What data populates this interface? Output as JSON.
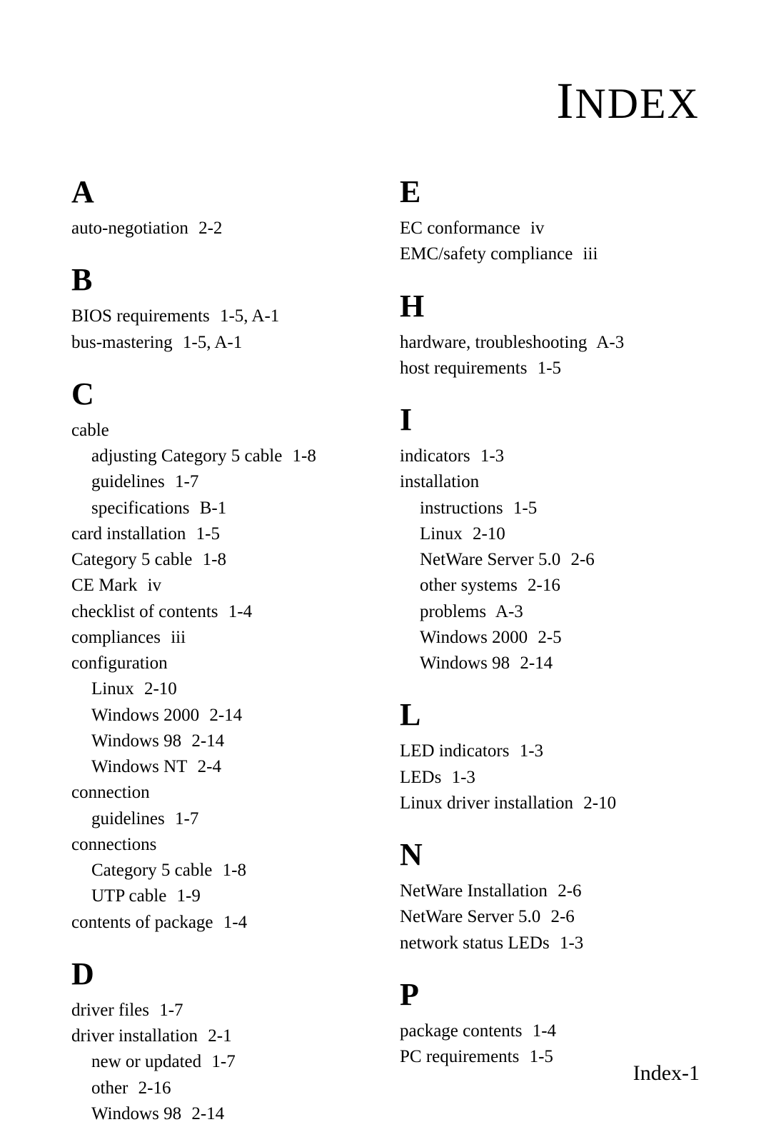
{
  "title": "Index",
  "page_number": "Index-1",
  "colors": {
    "text": "#000000",
    "background": "#ffffff"
  },
  "typography": {
    "title_fontsize": 60,
    "letter_fontsize": 44,
    "entry_fontsize": 25,
    "footer_fontsize": 30,
    "font_family": "Garamond"
  },
  "left_column": {
    "sections": [
      {
        "letter": "A",
        "entries": [
          {
            "text": "auto-negotiation",
            "page": "2-2"
          }
        ]
      },
      {
        "letter": "B",
        "entries": [
          {
            "text": "BIOS requirements",
            "page": "1-5, A-1"
          },
          {
            "text": "bus-mastering",
            "page": "1-5, A-1"
          }
        ]
      },
      {
        "letter": "C",
        "entries": [
          {
            "text": "cable"
          },
          {
            "text": "adjusting Category 5 cable",
            "page": "1-8",
            "sub": true
          },
          {
            "text": "guidelines",
            "page": "1-7",
            "sub": true
          },
          {
            "text": "specifications",
            "page": "B-1",
            "sub": true
          },
          {
            "text": "card installation",
            "page": "1-5"
          },
          {
            "text": "Category 5 cable",
            "page": "1-8"
          },
          {
            "text": "CE Mark",
            "page": "iv"
          },
          {
            "text": "checklist of contents",
            "page": "1-4"
          },
          {
            "text": "compliances",
            "page": "iii"
          },
          {
            "text": "configuration"
          },
          {
            "text": "Linux",
            "page": "2-10",
            "sub": true
          },
          {
            "text": "Windows 2000",
            "page": "2-14",
            "sub": true
          },
          {
            "text": "Windows 98",
            "page": "2-14",
            "sub": true
          },
          {
            "text": "Windows NT",
            "page": "2-4",
            "sub": true
          },
          {
            "text": "connection"
          },
          {
            "text": "guidelines",
            "page": "1-7",
            "sub": true
          },
          {
            "text": "connections"
          },
          {
            "text": "Category 5 cable",
            "page": "1-8",
            "sub": true
          },
          {
            "text": "UTP cable",
            "page": "1-9",
            "sub": true
          },
          {
            "text": "contents of package",
            "page": "1-4"
          }
        ]
      },
      {
        "letter": "D",
        "entries": [
          {
            "text": "driver files",
            "page": "1-7"
          },
          {
            "text": "driver installation",
            "page": "2-1"
          },
          {
            "text": "new or updated",
            "page": "1-7",
            "sub": true
          },
          {
            "text": "other",
            "page": "2-16",
            "sub": true
          },
          {
            "text": "Windows 98",
            "page": "2-14",
            "sub": true
          }
        ]
      }
    ]
  },
  "right_column": {
    "sections": [
      {
        "letter": "E",
        "entries": [
          {
            "text": "EC conformance",
            "page": "iv"
          },
          {
            "text": "EMC/safety compliance",
            "page": "iii"
          }
        ]
      },
      {
        "letter": "H",
        "entries": [
          {
            "text": "hardware, troubleshooting",
            "page": "A-3"
          },
          {
            "text": "host requirements",
            "page": "1-5"
          }
        ]
      },
      {
        "letter": "I",
        "entries": [
          {
            "text": "indicators",
            "page": "1-3"
          },
          {
            "text": "installation"
          },
          {
            "text": "instructions",
            "page": "1-5",
            "sub": true
          },
          {
            "text": "Linux",
            "page": "2-10",
            "sub": true
          },
          {
            "text": "NetWare Server 5.0",
            "page": "2-6",
            "sub": true
          },
          {
            "text": "other systems",
            "page": "2-16",
            "sub": true
          },
          {
            "text": "problems",
            "page": "A-3",
            "sub": true
          },
          {
            "text": "Windows 2000",
            "page": "2-5",
            "sub": true
          },
          {
            "text": "Windows 98",
            "page": "2-14",
            "sub": true
          }
        ]
      },
      {
        "letter": "L",
        "entries": [
          {
            "text": "LED indicators",
            "page": "1-3"
          },
          {
            "text": "LEDs",
            "page": "1-3"
          },
          {
            "text": "Linux driver installation",
            "page": "2-10"
          }
        ]
      },
      {
        "letter": "N",
        "entries": [
          {
            "text": "NetWare Installation",
            "page": "2-6"
          },
          {
            "text": "NetWare Server 5.0",
            "page": "2-6"
          },
          {
            "text": "network status LEDs",
            "page": "1-3"
          }
        ]
      },
      {
        "letter": "P",
        "entries": [
          {
            "text": "package contents",
            "page": "1-4"
          },
          {
            "text": "PC requirements",
            "page": "1-5"
          }
        ]
      }
    ]
  }
}
